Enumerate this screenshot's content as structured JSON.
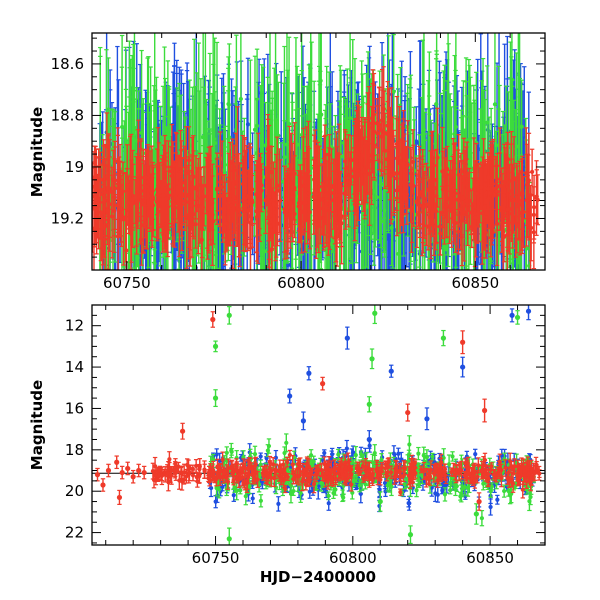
{
  "colors": {
    "blue": "#1f4fe0",
    "green": "#3cdc3c",
    "red": "#ef3a2a"
  },
  "chart_data": [
    {
      "type": "scatter",
      "title": "",
      "xlabel": "",
      "ylabel": "Magnitude",
      "xlim": [
        60740,
        60870
      ],
      "ylim": [
        19.4,
        18.48
      ],
      "y_inverted": true,
      "xticks": [
        60750,
        60800,
        60850
      ],
      "xtick_labels": [
        "60750",
        "60800",
        "60850"
      ],
      "yticks": [
        18.6,
        18.8,
        19.0,
        19.2
      ],
      "ytick_labels": [
        "18.6",
        "18.8",
        "19",
        "19.2"
      ],
      "reference_line": 19.13,
      "error_bars": true,
      "grid": false,
      "legend": "none",
      "series": [
        {
          "color": "blue",
          "x_range": [
            60742,
            60866
          ],
          "y_median": 19.1,
          "y_scatter": 0.22,
          "points": 460
        },
        {
          "color": "green",
          "x_range": [
            60742,
            60866
          ],
          "y_median": 19.05,
          "y_scatter": 0.28,
          "points": 420
        },
        {
          "color": "red",
          "x_range": [
            60740,
            60868
          ],
          "y_median": 19.12,
          "y_scatter": 0.12,
          "points": 700
        }
      ],
      "features": [
        {
          "x": 60822,
          "y": 18.75,
          "note": "red brightening near 60822"
        }
      ]
    },
    {
      "type": "scatter",
      "title": "",
      "xlabel": "HJD−2400000",
      "ylabel": "Magnitude",
      "xlim": [
        60705,
        60870
      ],
      "ylim": [
        22.6,
        11.0
      ],
      "y_inverted": true,
      "xticks": [
        60750,
        60800,
        60850
      ],
      "xtick_labels": [
        "60750",
        "60800",
        "60850"
      ],
      "yticks": [
        12,
        14,
        16,
        18,
        20,
        22
      ],
      "ytick_labels": [
        "12",
        "14",
        "16",
        "18",
        "20",
        "22"
      ],
      "reference_line": 19.13,
      "error_bars": true,
      "grid": false,
      "legend": "none",
      "series": [
        {
          "color": "blue",
          "x_range": [
            60728,
            60866
          ],
          "y_median": 19.2,
          "outliers": [
            [
              60798,
              12.6
            ],
            [
              60784,
              14.3
            ],
            [
              60777,
              15.4
            ],
            [
              60782,
              16.6
            ],
            [
              60814,
              14.2
            ],
            [
              60840,
              14.0
            ],
            [
              60858,
              11.5
            ],
            [
              60864,
              11.3
            ],
            [
              60827,
              16.5
            ],
            [
              60806,
              17.5
            ]
          ]
        },
        {
          "color": "green",
          "x_range": [
            60728,
            60866
          ],
          "y_median": 19.2,
          "outliers": [
            [
              60750,
              13.0
            ],
            [
              60755,
              11.5
            ],
            [
              60750,
              15.5
            ],
            [
              60808,
              11.4
            ],
            [
              60807,
              13.6
            ],
            [
              60833,
              12.6
            ],
            [
              60860,
              11.6
            ],
            [
              60755,
              22.3
            ],
            [
              60821,
              22.1
            ],
            [
              60845,
              21.1
            ],
            [
              60806,
              15.8
            ],
            [
              60810,
              20.5
            ]
          ]
        },
        {
          "color": "red",
          "x_range": [
            60707,
            60868
          ],
          "y_median": 19.1,
          "outliers": [
            [
              60749,
              11.7
            ],
            [
              60789,
              14.8
            ],
            [
              60840,
              12.8
            ],
            [
              60820,
              16.2
            ],
            [
              60848,
              16.1
            ],
            [
              60738,
              17.1
            ],
            [
              60715,
              20.3
            ],
            [
              60846,
              20.5
            ]
          ],
          "early_points": [
            [
              60707,
              19.2
            ],
            [
              60709,
              19.7
            ],
            [
              60711,
              19.0
            ],
            [
              60714,
              18.6
            ],
            [
              60716,
              19.1
            ],
            [
              60718,
              18.9
            ],
            [
              60720,
              19.3
            ],
            [
              60722,
              19.0
            ],
            [
              60724,
              19.1
            ]
          ]
        }
      ]
    }
  ]
}
